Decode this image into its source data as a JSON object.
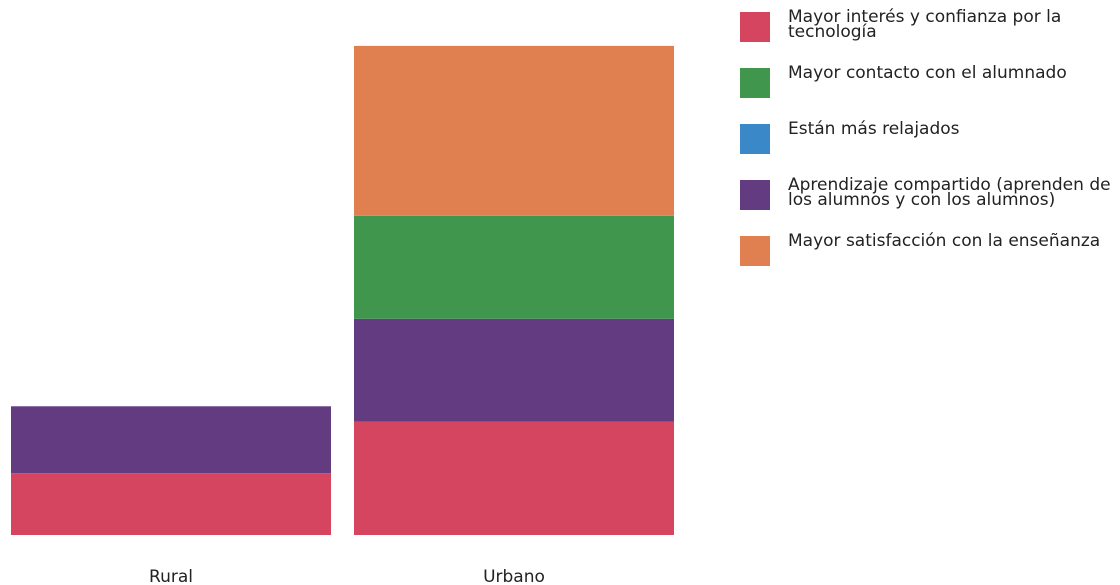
{
  "chart_data": {
    "type": "bar",
    "stacked": true,
    "categories": [
      "Rural",
      "Urbano"
    ],
    "series": [
      {
        "name": "Mayor interés y confianza por la tecnología",
        "color": "#d54560",
        "values": [
          12,
          22
        ]
      },
      {
        "name": "Mayor contacto con el alumnado",
        "color": "#40964d",
        "values": [
          0,
          20
        ]
      },
      {
        "name": "Están más relajados",
        "color": "#3a88c8",
        "values": [
          0,
          0
        ]
      },
      {
        "name": "Aprendizaje compartido (aprenden de los alumnos y con los alumnos)",
        "color": "#623b80",
        "values": [
          13,
          20
        ]
      },
      {
        "name": "Mayor satisfacción con la enseñanza",
        "color": "#e08050",
        "values": [
          0,
          33
        ]
      }
    ],
    "stack_order": [
      0,
      3,
      1,
      4
    ],
    "ylim": [
      0,
      101
    ],
    "grid": false,
    "legend_position": "right"
  }
}
